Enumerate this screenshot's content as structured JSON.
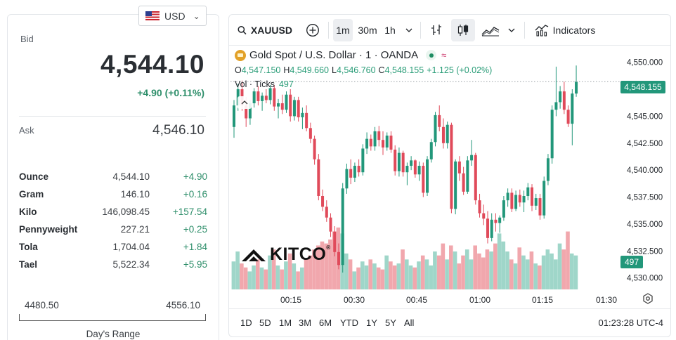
{
  "currency": {
    "selected": "USD",
    "flag": "us-flag"
  },
  "quote": {
    "bid_label": "Bid",
    "bid": "4,544.10",
    "change": "+4.90 (+0.11%)",
    "ask_label": "Ask",
    "ask": "4,546.10"
  },
  "units": [
    {
      "name": "Ounce",
      "price": "4,544.10",
      "change": "+4.90"
    },
    {
      "name": "Gram",
      "price": "146.10",
      "change": "+0.16"
    },
    {
      "name": "Kilo",
      "price": "146,098.45",
      "change": "+157.54"
    },
    {
      "name": "Pennyweight",
      "price": "227.21",
      "change": "+0.25"
    },
    {
      "name": "Tola",
      "price": "1,704.04",
      "change": "+1.84"
    },
    {
      "name": "Tael",
      "price": "5,522.34",
      "change": "+5.95"
    }
  ],
  "days_range": {
    "low": "4480.50",
    "high": "4556.10",
    "label": "Day's Range"
  },
  "toolbar": {
    "symbol": "XAUUSD",
    "intervals": [
      "1m",
      "30m",
      "1h"
    ],
    "active_interval": "1m",
    "indicators_label": "Indicators"
  },
  "legend": {
    "title": "Gold Spot / U.S. Dollar · 1 · OANDA",
    "open_k": "O",
    "open": "4,547.150",
    "high_k": "H",
    "high": "4,549.660",
    "low_k": "L",
    "low": "4,546.760",
    "close_k": "C",
    "close": "4,548.155",
    "change": "+1.125 (+0.02%)",
    "vol_label": "Vol · Ticks",
    "vol_value": "497"
  },
  "price_tag": "4,548.155",
  "vol_tag": "497",
  "watermark": "KITCO",
  "bottom": {
    "ranges": [
      "1D",
      "5D",
      "1M",
      "3M",
      "6M",
      "YTD",
      "1Y",
      "5Y",
      "All"
    ],
    "clock": "01:23:28 UTC-4"
  },
  "colors": {
    "up": "#22977a",
    "down": "#e04a5a",
    "up_vol": "#9fd6c9",
    "down_vol": "#f1a7ad"
  },
  "chart_data": {
    "type": "candlestick",
    "y_ticks": [
      "4,550.000",
      "4,547.500",
      "4,545.000",
      "4,542.500",
      "4,540.000",
      "4,537.500",
      "4,535.000",
      "4,532.500",
      "4,530.000"
    ],
    "x_ticks": [
      "00:15",
      "00:30",
      "00:45",
      "01:00",
      "01:15",
      "01:30"
    ],
    "ylim": [
      4529,
      4550.5
    ],
    "candles": [
      [
        4544.0,
        4546.5,
        4543.0,
        4546.0
      ],
      [
        4546.0,
        4548.0,
        4545.5,
        4547.5
      ],
      [
        4547.5,
        4548.3,
        4545.5,
        4546.0
      ],
      [
        4546.0,
        4546.8,
        4544.0,
        4544.8
      ],
      [
        4544.8,
        4546.5,
        4544.2,
        4546.2
      ],
      [
        4546.2,
        4547.6,
        4545.8,
        4547.3
      ],
      [
        4547.3,
        4547.8,
        4546.0,
        4546.4
      ],
      [
        4546.4,
        4547.2,
        4545.5,
        4546.9
      ],
      [
        4546.9,
        4547.5,
        4546.2,
        4546.5
      ],
      [
        4546.5,
        4547.9,
        4546.1,
        4547.6
      ],
      [
        4547.6,
        4547.9,
        4545.5,
        4545.9
      ],
      [
        4545.9,
        4546.6,
        4544.8,
        4546.2
      ],
      [
        4546.2,
        4547.0,
        4545.2,
        4545.6
      ],
      [
        4545.6,
        4547.3,
        4545.3,
        4547.0
      ],
      [
        4547.0,
        4547.5,
        4544.5,
        4545.0
      ],
      [
        4545.0,
        4546.8,
        4544.6,
        4546.5
      ],
      [
        4546.5,
        4546.8,
        4544.5,
        4544.9
      ],
      [
        4544.9,
        4545.8,
        4543.8,
        4545.3
      ],
      [
        4545.3,
        4546.0,
        4543.6,
        4543.9
      ],
      [
        4543.9,
        4544.4,
        4542.5,
        4542.9
      ],
      [
        4542.9,
        4543.2,
        4540.5,
        4541.0
      ],
      [
        4541.0,
        4541.5,
        4537.2,
        4537.6
      ],
      [
        4537.6,
        4538.2,
        4536.2,
        4536.6
      ],
      [
        4536.6,
        4537.2,
        4535.2,
        4535.6
      ],
      [
        4535.6,
        4536.0,
        4533.8,
        4534.3
      ],
      [
        4534.3,
        4534.8,
        4532.0,
        4532.4
      ],
      [
        4532.4,
        4533.2,
        4530.8,
        4531.2
      ],
      [
        4531.2,
        4538.8,
        4530.5,
        4538.3
      ],
      [
        4538.3,
        4540.6,
        4537.8,
        4540.1
      ],
      [
        4540.1,
        4541.0,
        4538.7,
        4539.3
      ],
      [
        4539.3,
        4540.7,
        4538.9,
        4540.4
      ],
      [
        4540.4,
        4541.0,
        4539.4,
        4539.8
      ],
      [
        4539.8,
        4542.4,
        4539.5,
        4542.0
      ],
      [
        4542.0,
        4543.5,
        4541.5,
        4542.9
      ],
      [
        4542.9,
        4543.3,
        4541.8,
        4542.2
      ],
      [
        4542.2,
        4544.0,
        4541.8,
        4543.6
      ],
      [
        4543.6,
        4544.1,
        4542.2,
        4542.8
      ],
      [
        4542.8,
        4543.6,
        4541.4,
        4542.1
      ],
      [
        4542.1,
        4543.5,
        4541.8,
        4543.2
      ],
      [
        4543.2,
        4543.6,
        4541.6,
        4541.9
      ],
      [
        4541.9,
        4542.3,
        4539.5,
        4539.9
      ],
      [
        4539.9,
        4542.1,
        4539.4,
        4541.6
      ],
      [
        4541.6,
        4541.8,
        4539.4,
        4539.8
      ],
      [
        4539.8,
        4540.7,
        4538.6,
        4540.4
      ],
      [
        4540.4,
        4541.3,
        4540.0,
        4540.9
      ],
      [
        4540.9,
        4541.0,
        4539.3,
        4539.6
      ],
      [
        4539.6,
        4540.8,
        4539.0,
        4540.4
      ],
      [
        4540.4,
        4540.7,
        4537.5,
        4537.9
      ],
      [
        4537.9,
        4541.3,
        4537.6,
        4541.0
      ],
      [
        4541.0,
        4542.9,
        4540.7,
        4542.6
      ],
      [
        4542.6,
        4545.4,
        4542.2,
        4545.1
      ],
      [
        4545.1,
        4546.0,
        4543.6,
        4544.0
      ],
      [
        4544.0,
        4544.8,
        4542.0,
        4542.5
      ],
      [
        4542.5,
        4544.5,
        4542.0,
        4544.2
      ],
      [
        4544.2,
        4544.4,
        4536.0,
        4536.4
      ],
      [
        4536.4,
        4541.0,
        4535.9,
        4540.8
      ],
      [
        4540.8,
        4541.3,
        4539.0,
        4539.7
      ],
      [
        4539.7,
        4540.3,
        4537.7,
        4538.0
      ],
      [
        4538.0,
        4541.3,
        4537.8,
        4540.9
      ],
      [
        4540.9,
        4542.8,
        4540.4,
        4541.4
      ],
      [
        4541.4,
        4541.6,
        4536.8,
        4537.2
      ],
      [
        4537.2,
        4537.8,
        4535.6,
        4536.0
      ],
      [
        4536.0,
        4536.8,
        4534.9,
        4535.5
      ],
      [
        4535.5,
        4536.2,
        4533.2,
        4533.7
      ],
      [
        4533.7,
        4536.0,
        4533.4,
        4535.4
      ],
      [
        4535.4,
        4536.0,
        4534.3,
        4535.1
      ],
      [
        4535.1,
        4535.8,
        4534.2,
        4535.6
      ],
      [
        4535.6,
        4537.6,
        4535.3,
        4537.2
      ],
      [
        4537.2,
        4538.3,
        4536.6,
        4537.9
      ],
      [
        4537.9,
        4538.3,
        4536.1,
        4536.4
      ],
      [
        4536.4,
        4538.1,
        4536.2,
        4537.7
      ],
      [
        4537.7,
        4538.2,
        4536.6,
        4537.0
      ],
      [
        4537.0,
        4538.1,
        4536.1,
        4537.6
      ],
      [
        4537.6,
        4538.8,
        4537.2,
        4538.4
      ],
      [
        4538.4,
        4538.7,
        4536.2,
        4536.7
      ],
      [
        4536.7,
        4537.8,
        4536.3,
        4537.4
      ],
      [
        4537.4,
        4537.8,
        4535.4,
        4535.8
      ],
      [
        4535.8,
        4539.4,
        4535.5,
        4539.0
      ],
      [
        4539.0,
        4541.5,
        4538.6,
        4541.1
      ],
      [
        4541.1,
        4546.0,
        4540.6,
        4545.6
      ],
      [
        4545.6,
        4549.6,
        4545.0,
        4546.3
      ],
      [
        4546.3,
        4547.8,
        4545.7,
        4547.3
      ],
      [
        4547.3,
        4548.2,
        4545.2,
        4545.6
      ],
      [
        4545.6,
        4546.0,
        4544.0,
        4544.3
      ],
      [
        4544.3,
        4547.5,
        4542.3,
        4547.1
      ],
      [
        4547.1,
        4549.7,
        4546.8,
        4548.2
      ]
    ],
    "volumes": [
      28,
      38,
      26,
      22,
      18,
      24,
      30,
      22,
      20,
      34,
      40,
      24,
      20,
      28,
      36,
      26,
      18,
      22,
      30,
      34,
      40,
      44,
      48,
      46,
      50,
      58,
      62,
      56,
      36,
      30,
      18,
      22,
      28,
      24,
      30,
      26,
      22,
      20,
      34,
      28,
      24,
      26,
      40,
      30,
      24,
      22,
      28,
      34,
      30,
      24,
      38,
      34,
      46,
      30,
      44,
      38,
      26,
      34,
      40,
      30,
      44,
      36,
      32,
      40,
      38,
      46,
      56,
      48,
      38,
      30,
      26,
      42,
      34,
      30,
      38,
      26,
      24,
      34,
      40,
      36,
      30,
      46,
      40,
      58,
      36,
      34
    ],
    "volume_max": 64
  }
}
